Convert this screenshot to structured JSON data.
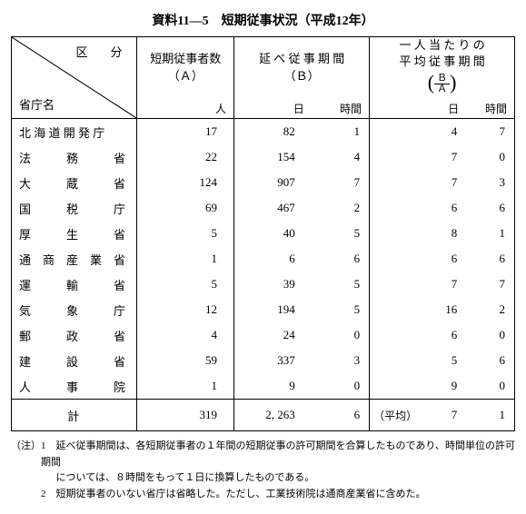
{
  "title": "資料11―5　短期従事状況（平成12年）",
  "header": {
    "diag_top": "区　分",
    "diag_bottom": "省庁名",
    "colA_line1": "短期従事者数",
    "colA_line2": "（Ａ）",
    "colB_line1": "延 べ 従 事 期 間",
    "colB_line2": "（Ｂ）",
    "colC_line1": "一 人 当 た り の",
    "colC_line2": "平 均 従 事 期 間",
    "frac_top": "Ｂ",
    "frac_bot": "Ａ",
    "unit_person": "人",
    "unit_day": "日",
    "unit_hour": "時間"
  },
  "rows": [
    {
      "agency": "北 海 道 開 発 庁",
      "a": "17",
      "b_d": "82",
      "b_h": "1",
      "c_d": "4",
      "c_h": "7"
    },
    {
      "agency": "法　　　務　　　省",
      "a": "22",
      "b_d": "154",
      "b_h": "4",
      "c_d": "7",
      "c_h": "0"
    },
    {
      "agency": "大　　　蔵　　　省",
      "a": "124",
      "b_d": "907",
      "b_h": "7",
      "c_d": "7",
      "c_h": "3"
    },
    {
      "agency": "国　　　税　　　庁",
      "a": "69",
      "b_d": "467",
      "b_h": "2",
      "c_d": "6",
      "c_h": "6"
    },
    {
      "agency": "厚　　　生　　　省",
      "a": "5",
      "b_d": "40",
      "b_h": "5",
      "c_d": "8",
      "c_h": "1"
    },
    {
      "agency": "通　商　産　業　省",
      "a": "1",
      "b_d": "6",
      "b_h": "6",
      "c_d": "6",
      "c_h": "6"
    },
    {
      "agency": "運　　　輸　　　省",
      "a": "5",
      "b_d": "39",
      "b_h": "5",
      "c_d": "7",
      "c_h": "7"
    },
    {
      "agency": "気　　　象　　　庁",
      "a": "12",
      "b_d": "194",
      "b_h": "5",
      "c_d": "16",
      "c_h": "2"
    },
    {
      "agency": "郵　　　政　　　省",
      "a": "4",
      "b_d": "24",
      "b_h": "0",
      "c_d": "6",
      "c_h": "0"
    },
    {
      "agency": "建　　　設　　　省",
      "a": "59",
      "b_d": "337",
      "b_h": "3",
      "c_d": "5",
      "c_h": "6"
    },
    {
      "agency": "人　　　事　　　院",
      "a": "1",
      "b_d": "9",
      "b_h": "0",
      "c_d": "9",
      "c_h": "0"
    }
  ],
  "total": {
    "label": "計",
    "a": "319",
    "b_d": "2, 263",
    "b_h": "6",
    "c_prefix": "（平均）",
    "c_d": "7",
    "c_h": "1"
  },
  "notes": {
    "lead": "（注）",
    "n1a": "1　延べ従事期間は、各短期従事者の１年間の短期従事の許可期間を合算したものであり、時間単位の許可期間",
    "n1b": "については、８時間をもって１日に換算したものである。",
    "n2": "2　短期従事者のいない省庁は省略した。ただし、工業技術院は通商産業省に含めた。"
  }
}
